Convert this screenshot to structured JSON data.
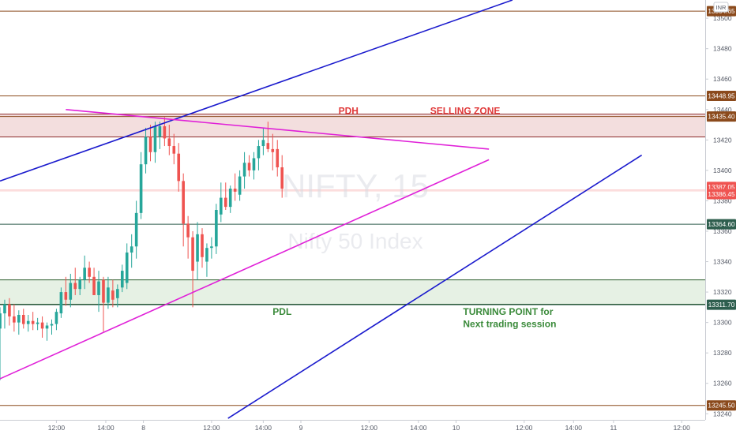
{
  "chart_data": {
    "type": "candlestick",
    "watermark": {
      "symbol": "NIFTY, 15",
      "name": "Nifty 50 Index"
    },
    "currency": "INR",
    "y_axis": {
      "range": [
        13236,
        13512
      ],
      "ticks": [
        13240,
        13260,
        13280,
        13300,
        13320,
        13340,
        13360,
        13380,
        13400,
        13420,
        13440,
        13460,
        13480,
        13500
      ]
    },
    "x_axis": {
      "range": [
        0,
        300
      ],
      "ticks": [
        {
          "label": "12:00",
          "x": 24
        },
        {
          "label": "14:00",
          "x": 45
        },
        {
          "label": "8",
          "x": 61
        },
        {
          "label": "12:00",
          "x": 90
        },
        {
          "label": "14:00",
          "x": 112
        },
        {
          "label": "9",
          "x": 128
        },
        {
          "label": "12:00",
          "x": 157
        },
        {
          "label": "14:00",
          "x": 178
        },
        {
          "label": "10",
          "x": 194
        },
        {
          "label": "12:00",
          "x": 223
        },
        {
          "label": "14:00",
          "x": 244
        },
        {
          "label": "11",
          "x": 261
        },
        {
          "label": "12:00",
          "x": 290
        }
      ]
    },
    "price_levels": [
      {
        "price": 13504.65,
        "label": "13504.65",
        "color": "#8b4a1c"
      },
      {
        "price": 13448.95,
        "label": "13448.95",
        "color": "#8b4a1c"
      },
      {
        "price": 13435.4,
        "label": "13435.40",
        "color": "#8b4a1c"
      },
      {
        "price": 13387.05,
        "label": "13387.05",
        "color": "#ef5350"
      },
      {
        "price": 13386.45,
        "label": "13386.45",
        "color": "#ef5350"
      },
      {
        "price": 13364.6,
        "label": "13364.60",
        "color": "#2e5e4e"
      },
      {
        "price": 13311.7,
        "label": "13311.70",
        "color": "#2e5e4e"
      },
      {
        "price": 13245.5,
        "label": "13245.50",
        "color": "#8b4a1c"
      }
    ],
    "zones": [
      {
        "from": 13422,
        "to": 13437,
        "fill": "#f3dede",
        "stroke": "#8b2a2a"
      },
      {
        "from": 13312,
        "to": 13328,
        "fill": "#e6f1e4",
        "stroke": "#2e5e2e"
      }
    ],
    "trendlines": [
      {
        "x1": 0,
        "y1": 13393,
        "x2": 218,
        "y2": 13512,
        "color": "#1a1acd"
      },
      {
        "x1": 97,
        "y1": 13237,
        "x2": 273,
        "y2": 13410,
        "color": "#1a1acd"
      },
      {
        "x1": 28,
        "y1": 13440,
        "x2": 208,
        "y2": 13414,
        "color": "#e020d8"
      },
      {
        "x1": 0,
        "y1": 13263,
        "x2": 208,
        "y2": 13407,
        "color": "#e020d8"
      }
    ],
    "annotations": [
      {
        "text": "PDH",
        "x": 144,
        "y": 13437,
        "color": "#e03a3a"
      },
      {
        "text": "SELLING ZONE",
        "x": 183,
        "y": 13437,
        "color": "#e03a3a"
      },
      {
        "text": "PDL",
        "x": 116,
        "y": 13305,
        "color": "#3a8a3a"
      },
      {
        "text": "TURNING POINT for",
        "x": 197,
        "y": 13305,
        "color": "#3a8a3a"
      },
      {
        "text": "Next trading session",
        "x": 197,
        "y": 13297,
        "color": "#3a8a3a"
      }
    ],
    "candles": [
      {
        "x": 0,
        "o": 13296,
        "h": 13310,
        "l": 13262,
        "c": 13306
      },
      {
        "x": 2,
        "o": 13306,
        "h": 13315,
        "l": 13296,
        "c": 13312
      },
      {
        "x": 4,
        "o": 13312,
        "h": 13316,
        "l": 13298,
        "c": 13304
      },
      {
        "x": 6,
        "o": 13304,
        "h": 13312,
        "l": 13294,
        "c": 13300
      },
      {
        "x": 8,
        "o": 13300,
        "h": 13308,
        "l": 13292,
        "c": 13305
      },
      {
        "x": 10,
        "o": 13305,
        "h": 13309,
        "l": 13296,
        "c": 13299
      },
      {
        "x": 12,
        "o": 13299,
        "h": 13305,
        "l": 13294,
        "c": 13301
      },
      {
        "x": 14,
        "o": 13301,
        "h": 13307,
        "l": 13295,
        "c": 13299
      },
      {
        "x": 16,
        "o": 13299,
        "h": 13303,
        "l": 13295,
        "c": 13300
      },
      {
        "x": 18,
        "o": 13300,
        "h": 13304,
        "l": 13290,
        "c": 13296
      },
      {
        "x": 20,
        "o": 13296,
        "h": 13300,
        "l": 13288,
        "c": 13298
      },
      {
        "x": 22,
        "o": 13298,
        "h": 13302,
        "l": 13292,
        "c": 13299
      },
      {
        "x": 24,
        "o": 13299,
        "h": 13309,
        "l": 13295,
        "c": 13307
      },
      {
        "x": 26,
        "o": 13306,
        "h": 13323,
        "l": 13303,
        "c": 13320
      },
      {
        "x": 28,
        "o": 13320,
        "h": 13330,
        "l": 13311,
        "c": 13315
      },
      {
        "x": 30,
        "o": 13315,
        "h": 13332,
        "l": 13310,
        "c": 13326
      },
      {
        "x": 32,
        "o": 13326,
        "h": 13336,
        "l": 13318,
        "c": 13322
      },
      {
        "x": 34,
        "o": 13322,
        "h": 13330,
        "l": 13318,
        "c": 13328
      },
      {
        "x": 36,
        "o": 13328,
        "h": 13344,
        "l": 13322,
        "c": 13336
      },
      {
        "x": 38,
        "o": 13336,
        "h": 13340,
        "l": 13326,
        "c": 13330
      },
      {
        "x": 40,
        "o": 13330,
        "h": 13336,
        "l": 13318,
        "c": 13318
      },
      {
        "x": 42,
        "o": 13318,
        "h": 13334,
        "l": 13307,
        "c": 13327
      },
      {
        "x": 44,
        "o": 13328,
        "h": 13330,
        "l": 13294,
        "c": 13313
      },
      {
        "x": 46,
        "o": 13313,
        "h": 13330,
        "l": 13309,
        "c": 13323
      },
      {
        "x": 48,
        "o": 13321,
        "h": 13328,
        "l": 13310,
        "c": 13315
      },
      {
        "x": 50,
        "o": 13316,
        "h": 13325,
        "l": 13310,
        "c": 13322
      },
      {
        "x": 52,
        "o": 13323,
        "h": 13338,
        "l": 13320,
        "c": 13334
      },
      {
        "x": 54,
        "o": 13326,
        "h": 13352,
        "l": 13322,
        "c": 13346
      },
      {
        "x": 56,
        "o": 13346,
        "h": 13358,
        "l": 13336,
        "c": 13350
      },
      {
        "x": 58,
        "o": 13350,
        "h": 13380,
        "l": 13342,
        "c": 13372
      },
      {
        "x": 60,
        "o": 13372,
        "h": 13412,
        "l": 13368,
        "c": 13404
      },
      {
        "x": 62,
        "o": 13404,
        "h": 13428,
        "l": 13398,
        "c": 13422
      },
      {
        "x": 64,
        "o": 13422,
        "h": 13430,
        "l": 13406,
        "c": 13412
      },
      {
        "x": 66,
        "o": 13412,
        "h": 13432,
        "l": 13405,
        "c": 13429
      },
      {
        "x": 68,
        "o": 13422,
        "h": 13432,
        "l": 13414,
        "c": 13429
      },
      {
        "x": 70,
        "o": 13429,
        "h": 13435,
        "l": 13416,
        "c": 13421
      },
      {
        "x": 72,
        "o": 13421,
        "h": 13430,
        "l": 13410,
        "c": 13416
      },
      {
        "x": 74,
        "o": 13416,
        "h": 13424,
        "l": 13404,
        "c": 13411
      },
      {
        "x": 76,
        "o": 13411,
        "h": 13418,
        "l": 13386,
        "c": 13393
      },
      {
        "x": 78,
        "o": 13393,
        "h": 13398,
        "l": 13350,
        "c": 13365
      },
      {
        "x": 80,
        "o": 13365,
        "h": 13370,
        "l": 13342,
        "c": 13356
      },
      {
        "x": 82,
        "o": 13356,
        "h": 13360,
        "l": 13310,
        "c": 13334
      },
      {
        "x": 84,
        "o": 13340,
        "h": 13366,
        "l": 13328,
        "c": 13358
      },
      {
        "x": 86,
        "o": 13358,
        "h": 13362,
        "l": 13336,
        "c": 13343
      },
      {
        "x": 88,
        "o": 13340,
        "h": 13352,
        "l": 13330,
        "c": 13349
      },
      {
        "x": 90,
        "o": 13349,
        "h": 13356,
        "l": 13342,
        "c": 13350
      },
      {
        "x": 92,
        "o": 13350,
        "h": 13378,
        "l": 13345,
        "c": 13374
      },
      {
        "x": 94,
        "o": 13371,
        "h": 13392,
        "l": 13366,
        "c": 13382
      },
      {
        "x": 96,
        "o": 13382,
        "h": 13392,
        "l": 13374,
        "c": 13376
      },
      {
        "x": 98,
        "o": 13376,
        "h": 13390,
        "l": 13372,
        "c": 13388
      },
      {
        "x": 100,
        "o": 13388,
        "h": 13398,
        "l": 13380,
        "c": 13386
      },
      {
        "x": 102,
        "o": 13384,
        "h": 13400,
        "l": 13380,
        "c": 13396
      },
      {
        "x": 104,
        "o": 13396,
        "h": 13412,
        "l": 13388,
        "c": 13405
      },
      {
        "x": 106,
        "o": 13405,
        "h": 13410,
        "l": 13396,
        "c": 13400
      },
      {
        "x": 108,
        "o": 13400,
        "h": 13412,
        "l": 13394,
        "c": 13408
      },
      {
        "x": 110,
        "o": 13408,
        "h": 13420,
        "l": 13400,
        "c": 13416
      },
      {
        "x": 112,
        "o": 13416,
        "h": 13428,
        "l": 13410,
        "c": 13420
      },
      {
        "x": 114,
        "o": 13418,
        "h": 13432,
        "l": 13412,
        "c": 13414
      },
      {
        "x": 116,
        "o": 13414,
        "h": 13424,
        "l": 13400,
        "c": 13412
      },
      {
        "x": 118,
        "o": 13414,
        "h": 13420,
        "l": 13396,
        "c": 13402
      },
      {
        "x": 120,
        "o": 13402,
        "h": 13410,
        "l": 13382,
        "c": 13388
      }
    ],
    "bull_color": "#26a69a",
    "bear_color": "#ef5350",
    "grid": false
  }
}
